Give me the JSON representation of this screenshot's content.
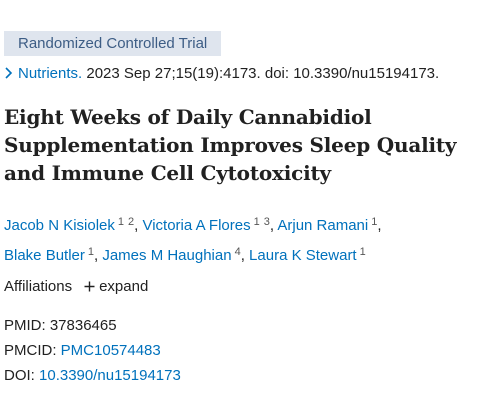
{
  "badge": "Randomized Controlled Trial",
  "citation": {
    "journal": "Nutrients.",
    "details": "2023 Sep 27;15(19):4173. doi: 10.3390/nu15194173."
  },
  "title": "Eight Weeks of Daily Cannabidiol Supplementation Improves Sleep Quality and Immune Cell Cytotoxicity",
  "authors": {
    "separator": ",",
    "list": [
      {
        "name": "Jacob N Kisiolek",
        "affiliations": [
          1,
          2
        ]
      },
      {
        "name": "Victoria A Flores",
        "affiliations": [
          1,
          3
        ]
      },
      {
        "name": "Arjun Ramani",
        "affiliations": [
          1
        ]
      },
      {
        "name": "Blake Butler",
        "affiliations": [
          1
        ]
      },
      {
        "name": "James M Haughian",
        "affiliations": [
          4
        ]
      },
      {
        "name": "Laura K Stewart",
        "affiliations": [
          1
        ]
      }
    ]
  },
  "affiliations": {
    "label": "Affiliations",
    "expand": "expand"
  },
  "identifiers": [
    {
      "label": "PMID:",
      "value": "37836465"
    },
    {
      "label": "PMCID:",
      "value": "PMC10574483"
    },
    {
      "label": "DOI:",
      "value": "10.3390/nu15194173"
    }
  ]
}
